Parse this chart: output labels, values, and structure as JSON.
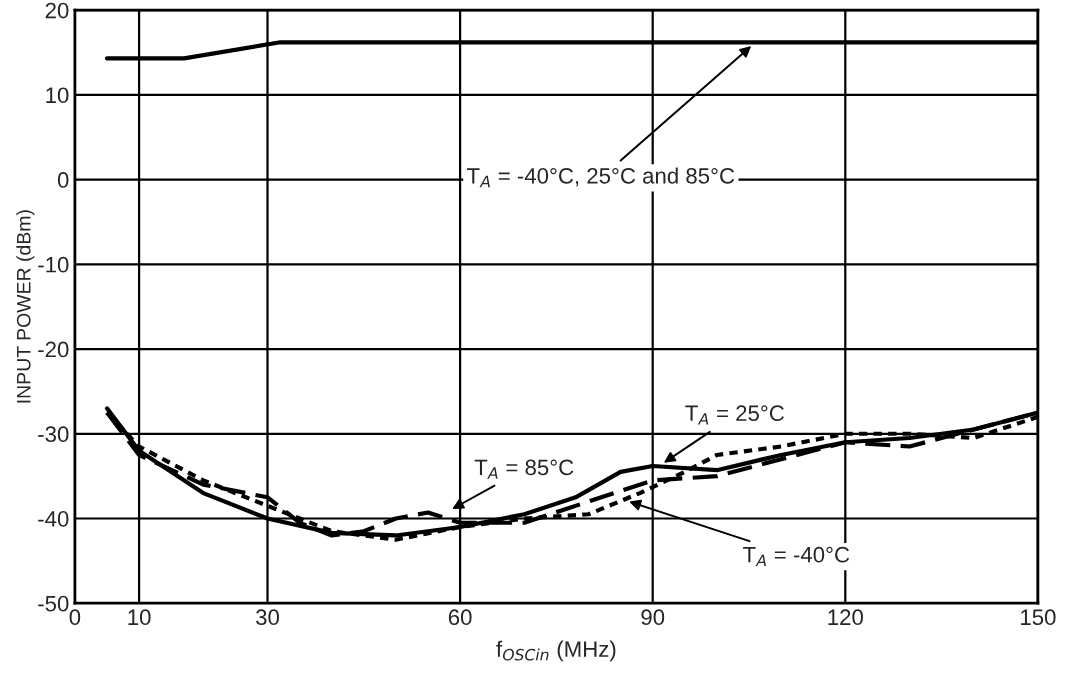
{
  "chart_data": {
    "type": "line",
    "xlabel": "f$_{OSCin}$ (MHz)",
    "ylabel": "INPUT POWER (dBm)",
    "xlim": [
      0,
      150
    ],
    "xticks": [
      0,
      10,
      30,
      60,
      90,
      120,
      150
    ],
    "ylim": [
      -50,
      20
    ],
    "yticks": [
      -50,
      -40,
      -30,
      -20,
      -10,
      0,
      10,
      20
    ],
    "grid": true,
    "legend": false,
    "marker": "none",
    "series": [
      {
        "color": "#000000",
        "line_style": "solid",
        "x": [
          5,
          17,
          32,
          150
        ],
        "values": [
          14.3,
          14.3,
          16.2,
          16.2
        ]
      },
      {
        "color": "#000000",
        "line_style": "solid",
        "x": [
          5,
          10,
          20,
          30,
          40,
          50,
          60,
          70,
          78,
          85,
          90,
          100,
          110,
          120,
          130,
          140,
          150
        ],
        "values": [
          -27,
          -32,
          -37,
          -40,
          -41.7,
          -42,
          -41,
          -39.5,
          -37.5,
          -34.5,
          -33.8,
          -34.3,
          -32.5,
          -31,
          -30.5,
          -29.5,
          -27.5
        ]
      },
      {
        "color": "#000000",
        "line_style": "dashed",
        "x": [
          5,
          10,
          20,
          30,
          35,
          40,
          45,
          50,
          55,
          60,
          70,
          80,
          90,
          100,
          110,
          120,
          130,
          140,
          150
        ],
        "values": [
          -27.5,
          -32.5,
          -36,
          -37.5,
          -40.5,
          -42,
          -41.5,
          -40,
          -39.3,
          -40.5,
          -40.5,
          -38,
          -35.5,
          -35,
          -33,
          -31,
          -31.5,
          -29.5,
          -27.5
        ]
      },
      {
        "color": "#000000",
        "line_style": "dotted",
        "x": [
          5,
          10,
          20,
          30,
          40,
          50,
          60,
          70,
          80,
          88,
          95,
          100,
          110,
          120,
          130,
          140,
          150
        ],
        "values": [
          -27.5,
          -31.5,
          -35.5,
          -38.5,
          -41.5,
          -42.5,
          -41,
          -40,
          -39.5,
          -37,
          -34.5,
          -32.5,
          -31.5,
          -30,
          -30,
          -30.5,
          -28
        ]
      }
    ],
    "annotations": [
      {
        "text": "T$_{A}$ = -40°C, 25°C and 85°C",
        "x": 106,
        "y": 16.2
      },
      {
        "text": "T$_{A}$ = 85°C",
        "x": 58,
        "y": -39.2
      },
      {
        "text": "T$_{A}$ = 25°C",
        "x": 91,
        "y": -33.8
      },
      {
        "text": "T$_{A}$ = -40°C",
        "x": 85.5,
        "y": -37.8
      }
    ]
  }
}
